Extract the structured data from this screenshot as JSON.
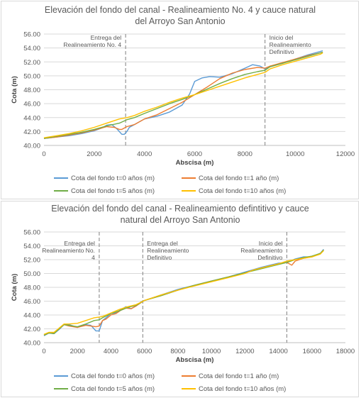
{
  "chart_data": [
    {
      "type": "line",
      "title": [
        "Elevación del fondo del canal - Realineamiento No. 4 y cauce natural",
        "del Arroyo San Antonio"
      ],
      "xlabel": "Abscisa (m)",
      "ylabel": "Cota (m)",
      "xlim": [
        0,
        12000
      ],
      "ylim": [
        40,
        56
      ],
      "xticks": [
        0,
        2000,
        4000,
        6000,
        8000,
        10000,
        12000
      ],
      "xtick_labels": [
        "0",
        "2000",
        "4000",
        "6000",
        "8000",
        "10000",
        "12000"
      ],
      "yticks": [
        40,
        42,
        44,
        46,
        48,
        50,
        52,
        54,
        56
      ],
      "ytick_labels": [
        "40.00",
        "42.00",
        "44.00",
        "46.00",
        "48.00",
        "50.00",
        "52.00",
        "54.00",
        "56.00"
      ],
      "grid": true,
      "legend_position": "bottom",
      "annotations": [
        {
          "x": 3250,
          "lines": [
            "Entrega del",
            "Realineamiento No. 4"
          ]
        },
        {
          "x": 8800,
          "lines": [
            "Inicio del",
            "Realineamiento",
            "Definitivo"
          ]
        }
      ],
      "series": [
        {
          "name": "Cota del fondo t=0 años (m)",
          "color": "#5b9bd5",
          "x": [
            0,
            500,
            1000,
            1500,
            2000,
            2300,
            2500,
            2700,
            2900,
            3100,
            3200,
            3300,
            3400,
            3600,
            4000,
            4500,
            5000,
            5500,
            5800,
            6000,
            6300,
            6600,
            7000,
            7500,
            8000,
            8300,
            8600,
            8800,
            9000,
            9500,
            10000,
            10500,
            11000,
            11100
          ],
          "y": [
            41.0,
            41.2,
            41.4,
            41.7,
            42.1,
            42.5,
            42.9,
            43.0,
            42.4,
            41.6,
            41.6,
            42.0,
            42.6,
            43.0,
            43.8,
            44.2,
            44.8,
            45.8,
            47.4,
            49.2,
            49.7,
            49.9,
            49.8,
            50.3,
            51.1,
            51.6,
            51.4,
            51.0,
            51.3,
            51.8,
            52.4,
            53.0,
            53.5,
            53.6
          ]
        },
        {
          "name": "Cota del fondo t=1 año (m)",
          "color": "#ed7d31",
          "x": [
            0,
            500,
            1000,
            1500,
            2000,
            2500,
            2800,
            3000,
            3100,
            3300,
            3600,
            4000,
            4500,
            5000,
            5500,
            6000,
            6500,
            7000,
            7500,
            8000,
            8500,
            8800,
            9000,
            9500,
            10000,
            10500,
            11000,
            11100
          ],
          "y": [
            41.0,
            41.2,
            41.5,
            41.8,
            42.2,
            42.7,
            42.6,
            42.3,
            42.3,
            42.7,
            43.0,
            43.8,
            44.4,
            45.3,
            46.2,
            47.3,
            48.4,
            49.6,
            50.4,
            50.9,
            51.2,
            51.1,
            51.4,
            51.9,
            52.4,
            52.9,
            53.3,
            53.4
          ]
        },
        {
          "name": "Cota del fondo t=5 años (m)",
          "color": "#70ad47",
          "x": [
            0,
            500,
            1000,
            1500,
            2000,
            2500,
            3000,
            3300,
            3600,
            4000,
            4500,
            5000,
            5500,
            6000,
            6500,
            7000,
            7500,
            8000,
            8500,
            8800,
            9000,
            9500,
            10000,
            10500,
            11000,
            11100
          ],
          "y": [
            41.0,
            41.3,
            41.6,
            41.9,
            42.3,
            42.8,
            43.2,
            43.7,
            44.0,
            44.6,
            45.3,
            46.0,
            46.6,
            47.3,
            48.1,
            48.9,
            49.6,
            50.2,
            50.6,
            50.8,
            51.3,
            51.8,
            52.3,
            52.8,
            53.3,
            53.4
          ]
        },
        {
          "name": "Cota del fondo t=10 años (m)",
          "color": "#ffc000",
          "x": [
            0,
            500,
            1000,
            1500,
            2000,
            2500,
            3000,
            3300,
            3600,
            4000,
            4500,
            5000,
            5500,
            6000,
            6500,
            7000,
            7500,
            8000,
            8500,
            8800,
            9000,
            9500,
            10000,
            10500,
            11000,
            11100
          ],
          "y": [
            41.1,
            41.4,
            41.7,
            42.1,
            42.6,
            43.2,
            43.8,
            44.0,
            44.3,
            44.9,
            45.5,
            46.2,
            46.8,
            47.3,
            47.9,
            48.5,
            49.1,
            49.7,
            50.2,
            50.5,
            51.0,
            51.6,
            52.1,
            52.6,
            53.1,
            53.3
          ]
        }
      ]
    },
    {
      "type": "line",
      "title": [
        "Elevación del fondo del canal - Realineamiento defintitivo y cauce",
        "natural del Arroyo San Antonio"
      ],
      "xlabel": "Abscisa (m)",
      "ylabel": "Cota (m)",
      "xlim": [
        0,
        18000
      ],
      "ylim": [
        40,
        56
      ],
      "xticks": [
        0,
        2000,
        4000,
        6000,
        8000,
        10000,
        12000,
        14000,
        16000,
        18000
      ],
      "xtick_labels": [
        "0",
        "2000",
        "4000",
        "6000",
        "8000",
        "10000",
        "12000",
        "14000",
        "16000",
        "18000"
      ],
      "yticks": [
        40,
        42,
        44,
        46,
        48,
        50,
        52,
        54,
        56
      ],
      "ytick_labels": [
        "40.00",
        "42.00",
        "44.00",
        "46.00",
        "48.00",
        "50.00",
        "52.00",
        "54.00",
        "56.00"
      ],
      "grid": true,
      "legend_position": "bottom",
      "annotations": [
        {
          "x": 3300,
          "lines": [
            "Entrega del",
            "Realineamiento No.",
            "4"
          ]
        },
        {
          "x": 5900,
          "lines": [
            "Entrega del",
            "Realineamiento",
            "Definitivo"
          ]
        },
        {
          "x": 14500,
          "lines": [
            "Inicio del",
            "Realineamiento",
            "Definitivo"
          ]
        }
      ],
      "series": [
        {
          "name": "Cota del fondo t=0 años (m)",
          "color": "#5b9bd5",
          "x": [
            0,
            300,
            600,
            900,
            1200,
            1500,
            2000,
            2500,
            2800,
            3100,
            3300,
            3500,
            3700,
            4000,
            4300,
            4600,
            4900,
            5200,
            5500,
            5800,
            6000,
            7000,
            8000,
            9000,
            10000,
            11000,
            12000,
            13000,
            14000,
            14500,
            15000,
            15500,
            16000,
            16500,
            16700
          ],
          "y": [
            41.0,
            41.4,
            41.3,
            41.9,
            42.6,
            42.6,
            42.2,
            42.6,
            42.5,
            41.7,
            41.7,
            43.2,
            43.6,
            44.2,
            44.3,
            44.8,
            45.2,
            44.9,
            45.3,
            45.9,
            46.1,
            46.9,
            47.7,
            48.3,
            48.9,
            49.5,
            50.2,
            50.9,
            51.5,
            51.6,
            52.1,
            52.4,
            52.4,
            52.9,
            53.5
          ]
        },
        {
          "name": "Cota del fondo t=1 año (m)",
          "color": "#ed7d31",
          "x": [
            0,
            300,
            600,
            900,
            1200,
            1500,
            2000,
            2500,
            2800,
            3100,
            3300,
            3500,
            3700,
            4000,
            4300,
            4600,
            4900,
            5200,
            5500,
            5800,
            6000,
            7000,
            8000,
            9000,
            10000,
            11000,
            12000,
            13000,
            14000,
            14500,
            14800,
            15000,
            15500,
            16000,
            16500,
            16700
          ],
          "y": [
            41.1,
            41.4,
            41.4,
            42.0,
            42.6,
            42.4,
            42.2,
            42.5,
            42.4,
            42.3,
            42.4,
            43.2,
            43.4,
            44.0,
            44.2,
            44.7,
            45.0,
            44.9,
            45.3,
            45.8,
            46.1,
            46.8,
            47.6,
            48.3,
            48.9,
            49.5,
            50.1,
            50.8,
            51.4,
            51.6,
            51.2,
            51.8,
            52.2,
            52.4,
            52.9,
            53.4
          ]
        },
        {
          "name": "Cota del fondo t=5 años (m)",
          "color": "#70ad47",
          "x": [
            0,
            300,
            600,
            900,
            1200,
            1500,
            2000,
            2500,
            3000,
            3300,
            3500,
            4000,
            4500,
            5000,
            5500,
            6000,
            7000,
            8000,
            9000,
            10000,
            11000,
            12000,
            13000,
            14000,
            14500,
            15000,
            15500,
            16000,
            16500,
            16700
          ],
          "y": [
            41.1,
            41.4,
            41.3,
            42.0,
            42.6,
            42.5,
            42.3,
            42.7,
            43.2,
            43.3,
            43.6,
            44.2,
            44.6,
            45.1,
            45.4,
            46.1,
            46.8,
            47.6,
            48.3,
            48.9,
            49.5,
            50.1,
            50.7,
            51.3,
            51.6,
            52.0,
            52.3,
            52.5,
            52.9,
            53.4
          ]
        },
        {
          "name": "Cota del fondo t=10 años (m)",
          "color": "#ffc000",
          "x": [
            0,
            300,
            600,
            900,
            1200,
            1500,
            2000,
            2500,
            3000,
            3300,
            3500,
            4000,
            4500,
            5000,
            5500,
            6000,
            7000,
            8000,
            9000,
            10000,
            11000,
            12000,
            12500,
            13000,
            14000,
            14500,
            15000,
            15500,
            16000,
            16500,
            16700
          ],
          "y": [
            41.2,
            41.5,
            41.5,
            42.1,
            42.7,
            42.7,
            42.8,
            43.2,
            43.6,
            43.7,
            43.8,
            44.3,
            44.8,
            45.2,
            45.5,
            46.1,
            46.9,
            47.6,
            48.2,
            48.8,
            49.4,
            50.0,
            50.5,
            50.8,
            51.4,
            51.8,
            52.0,
            52.2,
            52.4,
            52.8,
            53.3
          ]
        }
      ]
    }
  ]
}
